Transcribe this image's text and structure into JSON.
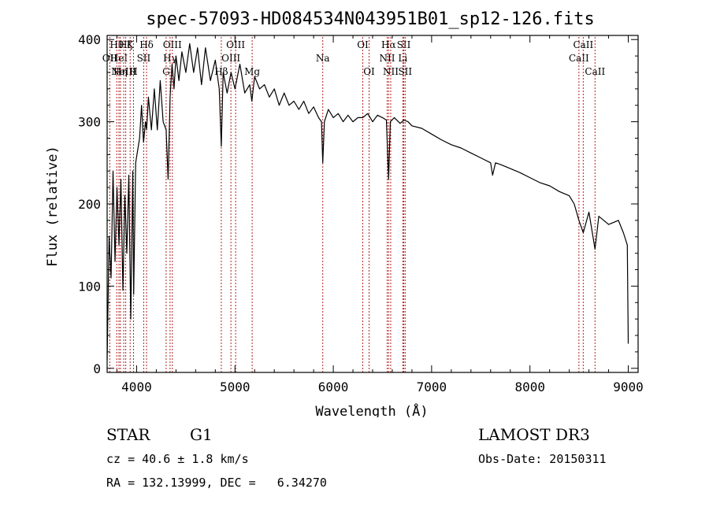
{
  "chart_data": {
    "type": "line",
    "title": "spec-57093-HD084534N043951B01_sp12-126.fits",
    "xlabel": "Wavelength (Å)",
    "ylabel": "Flux (relative)",
    "xlim": [
      3700,
      9100
    ],
    "ylim": [
      -5,
      405
    ],
    "xticks": [
      4000,
      5000,
      6000,
      7000,
      8000,
      9000
    ],
    "yticks": [
      0,
      100,
      200,
      300,
      400
    ],
    "grid": false,
    "series": [
      {
        "name": "flux",
        "points": [
          [
            3700,
            10
          ],
          [
            3720,
            160
          ],
          [
            3740,
            110
          ],
          [
            3760,
            240
          ],
          [
            3780,
            130
          ],
          [
            3800,
            220
          ],
          [
            3820,
            150
          ],
          [
            3840,
            230
          ],
          [
            3860,
            95
          ],
          [
            3880,
            210
          ],
          [
            3900,
            140
          ],
          [
            3920,
            235
          ],
          [
            3940,
            60
          ],
          [
            3960,
            240
          ],
          [
            3970,
            90
          ],
          [
            3990,
            250
          ],
          [
            4010,
            265
          ],
          [
            4030,
            280
          ],
          [
            4050,
            320
          ],
          [
            4070,
            275
          ],
          [
            4090,
            300
          ],
          [
            4101,
            290
          ],
          [
            4120,
            330
          ],
          [
            4150,
            290
          ],
          [
            4180,
            340
          ],
          [
            4210,
            290
          ],
          [
            4240,
            350
          ],
          [
            4270,
            300
          ],
          [
            4300,
            290
          ],
          [
            4320,
            230
          ],
          [
            4340,
            330
          ],
          [
            4360,
            370
          ],
          [
            4380,
            340
          ],
          [
            4400,
            380
          ],
          [
            4430,
            350
          ],
          [
            4460,
            385
          ],
          [
            4500,
            360
          ],
          [
            4540,
            395
          ],
          [
            4580,
            360
          ],
          [
            4620,
            390
          ],
          [
            4660,
            345
          ],
          [
            4700,
            390
          ],
          [
            4750,
            350
          ],
          [
            4800,
            375
          ],
          [
            4840,
            340
          ],
          [
            4861,
            270
          ],
          [
            4880,
            360
          ],
          [
            4920,
            335
          ],
          [
            4960,
            360
          ],
          [
            5000,
            340
          ],
          [
            5050,
            370
          ],
          [
            5100,
            335
          ],
          [
            5150,
            345
          ],
          [
            5172,
            325
          ],
          [
            5200,
            355
          ],
          [
            5250,
            340
          ],
          [
            5300,
            345
          ],
          [
            5350,
            330
          ],
          [
            5400,
            340
          ],
          [
            5450,
            320
          ],
          [
            5500,
            335
          ],
          [
            5550,
            320
          ],
          [
            5600,
            325
          ],
          [
            5650,
            315
          ],
          [
            5700,
            325
          ],
          [
            5750,
            310
          ],
          [
            5800,
            318
          ],
          [
            5850,
            305
          ],
          [
            5880,
            300
          ],
          [
            5893,
            250
          ],
          [
            5910,
            300
          ],
          [
            5950,
            315
          ],
          [
            6000,
            305
          ],
          [
            6050,
            310
          ],
          [
            6100,
            300
          ],
          [
            6150,
            308
          ],
          [
            6200,
            300
          ],
          [
            6250,
            305
          ],
          [
            6300,
            305
          ],
          [
            6350,
            310
          ],
          [
            6400,
            300
          ],
          [
            6450,
            308
          ],
          [
            6500,
            305
          ],
          [
            6540,
            302
          ],
          [
            6563,
            230
          ],
          [
            6580,
            300
          ],
          [
            6620,
            305
          ],
          [
            6680,
            298
          ],
          [
            6720,
            302
          ],
          [
            6760,
            300
          ],
          [
            6800,
            295
          ],
          [
            6900,
            292
          ],
          [
            7000,
            285
          ],
          [
            7100,
            278
          ],
          [
            7200,
            272
          ],
          [
            7300,
            268
          ],
          [
            7400,
            262
          ],
          [
            7500,
            256
          ],
          [
            7600,
            250
          ],
          [
            7620,
            235
          ],
          [
            7650,
            250
          ],
          [
            7700,
            248
          ],
          [
            7800,
            243
          ],
          [
            7900,
            238
          ],
          [
            8000,
            232
          ],
          [
            8100,
            226
          ],
          [
            8200,
            222
          ],
          [
            8300,
            215
          ],
          [
            8400,
            210
          ],
          [
            8450,
            200
          ],
          [
            8498,
            180
          ],
          [
            8542,
            165
          ],
          [
            8600,
            190
          ],
          [
            8662,
            145
          ],
          [
            8700,
            185
          ],
          [
            8800,
            175
          ],
          [
            8900,
            180
          ],
          [
            8950,
            165
          ],
          [
            8990,
            150
          ],
          [
            9000,
            30
          ]
        ]
      }
    ],
    "line_markers": [
      {
        "wavelength": 3727,
        "label": "OII",
        "row": 1
      },
      {
        "wavelength": 3798,
        "label": "Hθ",
        "row": 0
      },
      {
        "wavelength": 3820,
        "label": "HeI",
        "row": 1
      },
      {
        "wavelength": 3835,
        "label": "Hη",
        "row": 2
      },
      {
        "wavelength": 3869,
        "label": "NeIII",
        "row": 2
      },
      {
        "wavelength": 3889,
        "label": "Hζ",
        "row": 0
      },
      {
        "wavelength": 3934,
        "label": "K",
        "row": 0
      },
      {
        "wavelength": 3968,
        "label": "H",
        "row": 2
      },
      {
        "wavelength": 4072,
        "label": "SII",
        "row": 1
      },
      {
        "wavelength": 4101,
        "label": "Hδ",
        "row": 0
      },
      {
        "wavelength": 4300,
        "label": "G",
        "row": 2
      },
      {
        "wavelength": 4340,
        "label": "Hγ",
        "row": 1
      },
      {
        "wavelength": 4363,
        "label": "OIII",
        "row": 0
      },
      {
        "wavelength": 4861,
        "label": "Hβ",
        "row": 2
      },
      {
        "wavelength": 4959,
        "label": "OIII",
        "row": 1
      },
      {
        "wavelength": 5007,
        "label": "OIII",
        "row": 0
      },
      {
        "wavelength": 5175,
        "label": "Mg",
        "row": 2
      },
      {
        "wavelength": 5893,
        "label": "Na",
        "row": 1
      },
      {
        "wavelength": 6300,
        "label": "OI",
        "row": 0
      },
      {
        "wavelength": 6364,
        "label": "OI",
        "row": 2
      },
      {
        "wavelength": 6548,
        "label": "NII",
        "row": 1
      },
      {
        "wavelength": 6563,
        "label": "Hα",
        "row": 0
      },
      {
        "wavelength": 6584,
        "label": "NII",
        "row": 2
      },
      {
        "wavelength": 6707,
        "label": "Li",
        "row": 1
      },
      {
        "wavelength": 6717,
        "label": "SII",
        "row": 0
      },
      {
        "wavelength": 6731,
        "label": "SII",
        "row": 2
      },
      {
        "wavelength": 8498,
        "label": "CaII",
        "row": 1
      },
      {
        "wavelength": 8542,
        "label": "CaII",
        "row": 0
      },
      {
        "wavelength": 8662,
        "label": "CaII",
        "row": 2
      }
    ]
  },
  "info": {
    "object_class": "STAR",
    "subclass": "G1",
    "cz_line": "cz = 40.6 ± 1.8 km/s",
    "coord_line": "RA = 132.13999, DEC =   6.34270",
    "survey": "LAMOST DR3",
    "obs_date_line": "Obs-Date: 20150311"
  },
  "colors": {
    "axis": "#000000",
    "spectrum": "#000000",
    "marker_line": "#b22222",
    "background": "#ffffff"
  }
}
